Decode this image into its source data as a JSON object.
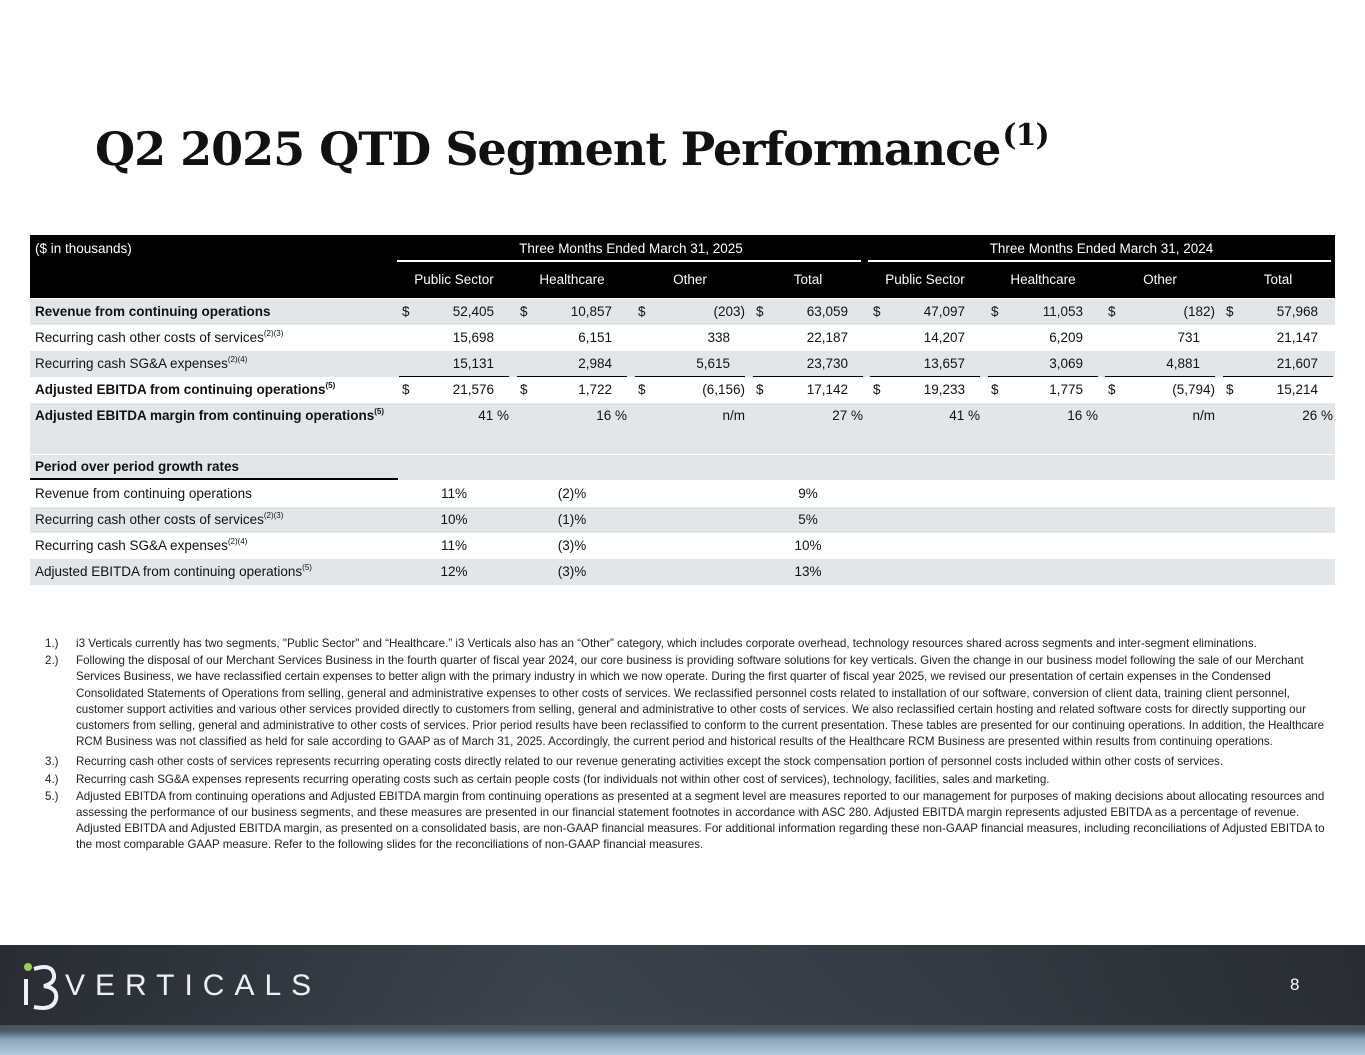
{
  "title": {
    "text": "Q2 2025 QTD Segment Performance",
    "note": "(1)"
  },
  "table": {
    "unit_label": "($ in thousands)",
    "periods": [
      {
        "label": "Three Months Ended March 31, 2025",
        "columns": [
          "Public Sector",
          "Healthcare",
          "Other",
          "Total"
        ]
      },
      {
        "label": "Three Months Ended March 31, 2024",
        "columns": [
          "Public Sector",
          "Healthcare",
          "Other",
          "Total"
        ]
      }
    ],
    "rows": [
      {
        "label": "Revenue from continuing operations",
        "bold": true,
        "cells": [
          {
            "prefix": "$",
            "text": "52,405"
          },
          {
            "prefix": "$",
            "text": "10,857"
          },
          {
            "prefix": "$",
            "text": "(203)"
          },
          {
            "prefix": "$",
            "text": "63,059"
          },
          {
            "prefix": "$",
            "text": "47,097"
          },
          {
            "prefix": "$",
            "text": "11,053"
          },
          {
            "prefix": "$",
            "text": "(182)"
          },
          {
            "prefix": "$",
            "text": "57,968"
          }
        ]
      },
      {
        "label": "Recurring cash other costs of services",
        "note": "(2)(3)",
        "cells": [
          {
            "text": "15,698"
          },
          {
            "text": "6,151"
          },
          {
            "text": "338"
          },
          {
            "text": "22,187"
          },
          {
            "text": "14,207"
          },
          {
            "text": "6,209"
          },
          {
            "text": "731"
          },
          {
            "text": "21,147"
          }
        ]
      },
      {
        "label": "Recurring cash SG&A expenses",
        "note": "(2)(4)",
        "underline": true,
        "cells": [
          {
            "text": "15,131"
          },
          {
            "text": "2,984"
          },
          {
            "text": "5,615"
          },
          {
            "text": "23,730"
          },
          {
            "text": "13,657"
          },
          {
            "text": "3,069"
          },
          {
            "text": "4,881"
          },
          {
            "text": "21,607"
          }
        ]
      },
      {
        "label": "Adjusted EBITDA from continuing operations",
        "note": "(5)",
        "bold": true,
        "cells": [
          {
            "prefix": "$",
            "text": "21,576"
          },
          {
            "prefix": "$",
            "text": "1,722"
          },
          {
            "prefix": "$",
            "text": "(6,156)"
          },
          {
            "prefix": "$",
            "text": "17,142"
          },
          {
            "prefix": "$",
            "text": "19,233"
          },
          {
            "prefix": "$",
            "text": "1,775"
          },
          {
            "prefix": "$",
            "text": "(5,794)"
          },
          {
            "prefix": "$",
            "text": "15,214"
          }
        ]
      },
      {
        "label": "Adjusted EBITDA margin from continuing operations",
        "note": "(5)",
        "bold": true,
        "cells": [
          {
            "text": "41 %"
          },
          {
            "text": "16 %"
          },
          {
            "text": "n/m"
          },
          {
            "text": "27 %"
          },
          {
            "text": "41 %"
          },
          {
            "text": "16 %"
          },
          {
            "text": "n/m"
          },
          {
            "text": "26 %"
          }
        ]
      }
    ],
    "growth": {
      "label": "Period over period growth rates",
      "rows": [
        {
          "label": "Revenue from continuing operations",
          "public_sector": "11%",
          "healthcare": "(2)%",
          "total": "9%"
        },
        {
          "label": "Recurring cash other costs of services",
          "note": "(2)(3)",
          "public_sector": "10%",
          "healthcare": "(1)%",
          "total": "5%"
        },
        {
          "label": "Recurring cash SG&A expenses",
          "note": "(2)(4)",
          "public_sector": "11%",
          "healthcare": "(3)%",
          "total": "10%"
        },
        {
          "label": "Adjusted EBITDA from continuing operations",
          "note": "(5)",
          "public_sector": "12%",
          "healthcare": "(3)%",
          "total": "13%"
        }
      ]
    }
  },
  "footnotes": [
    {
      "marker": "1.)",
      "text": "i3 Verticals currently has two segments, \"Public Sector\" and “Healthcare.”  i3 Verticals also has an “Other” category, which includes corporate overhead, technology resources shared across segments and inter-segment eliminations."
    },
    {
      "marker": "2.)",
      "text": "Following the disposal of our Merchant Services Business in the fourth quarter of fiscal year 2024, our core business is providing software solutions for key verticals. Given the change in our business model following the sale of our Merchant Services Business, we have reclassified certain expenses to better align with the primary industry in which we now operate. During the first quarter of fiscal year 2025, we revised our presentation of certain expenses in the Condensed Consolidated Statements of Operations from selling, general and administrative expenses to other costs of services. We reclassified personnel costs related to installation of our software, conversion of client data, training client personnel, customer support activities and various other services provided directly to customers from selling, general and administrative to other costs of services. We also reclassified certain hosting and related software costs for directly supporting our customers from selling, general and administrative to other costs of services. Prior period results have been reclassified to conform to the current presentation. These tables are presented for our continuing operations. In addition, the Healthcare RCM Business was not classified as held for sale according to GAAP as of March 31, 2025. Accordingly, the current period and historical results of the Healthcare RCM Business are presented within results from continuing operations."
    },
    {
      "marker": "3.)",
      "text": "Recurring cash other costs of services represents recurring operating costs directly related to our revenue generating activities except the stock compensation portion of personnel costs included within other costs of services."
    },
    {
      "marker": "4.)",
      "text": "Recurring cash SG&A expenses represents recurring operating costs such as certain people costs (for individuals not within other cost of services), technology, facilities, sales and marketing."
    },
    {
      "marker": "5.)",
      "text": "Adjusted EBITDA from continuing operations and Adjusted EBITDA margin from continuing operations as presented at a segment level are measures reported to our management for purposes of making decisions about allocating resources and assessing the performance of our business segments, and these measures are presented in our financial statement footnotes in accordance with ASC 280. Adjusted EBITDA margin represents adjusted EBITDA as a percentage of revenue. Adjusted EBITDA and Adjusted EBITDA margin, as presented on a consolidated basis, are non-GAAP financial measures. For additional information regarding these non-GAAP financial measures, including reconciliations of Adjusted EBITDA to the most comparable GAAP measure. Refer to the following slides for the reconciliations of non-GAAP financial measures."
    }
  ],
  "footer": {
    "logo": "VERTICALS",
    "page_number": "8"
  }
}
